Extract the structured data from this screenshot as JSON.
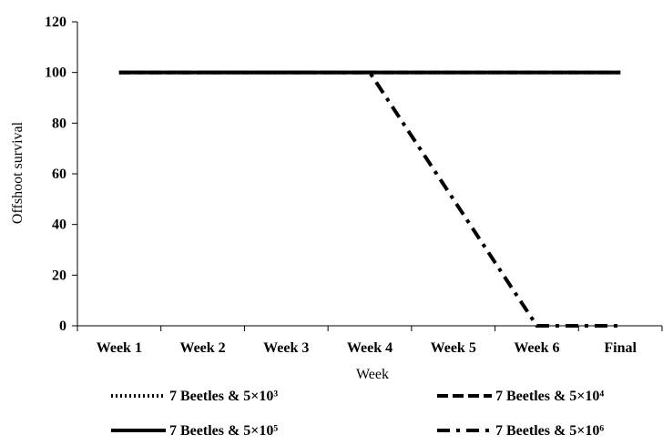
{
  "chart_data": {
    "type": "line",
    "xlabel": "Week",
    "ylabel": "Offshoot survival",
    "ylim": [
      0,
      120
    ],
    "yticks": [
      0,
      20,
      40,
      60,
      80,
      100,
      120
    ],
    "categories": [
      "Week 1",
      "Week 2",
      "Week 3",
      "Week 4",
      "Week 5",
      "Week 6",
      "Final"
    ],
    "grid": false,
    "legend_position": "bottom",
    "series": [
      {
        "name": "7 Beetles & 5×10³",
        "style": "dotted",
        "values": [
          100,
          100,
          100,
          100,
          100,
          100,
          100
        ]
      },
      {
        "name": "7 Beetles & 5×10⁴",
        "style": "dashed",
        "values": [
          100,
          100,
          100,
          100,
          100,
          100,
          100
        ]
      },
      {
        "name": "7 Beetles & 5×10⁵",
        "style": "solid",
        "values": [
          100,
          100,
          100,
          100,
          100,
          100,
          100
        ]
      },
      {
        "name": "7 Beetles & 5×10⁶",
        "style": "dashdot",
        "values": [
          100,
          100,
          100,
          100,
          50,
          0,
          0
        ]
      }
    ]
  }
}
